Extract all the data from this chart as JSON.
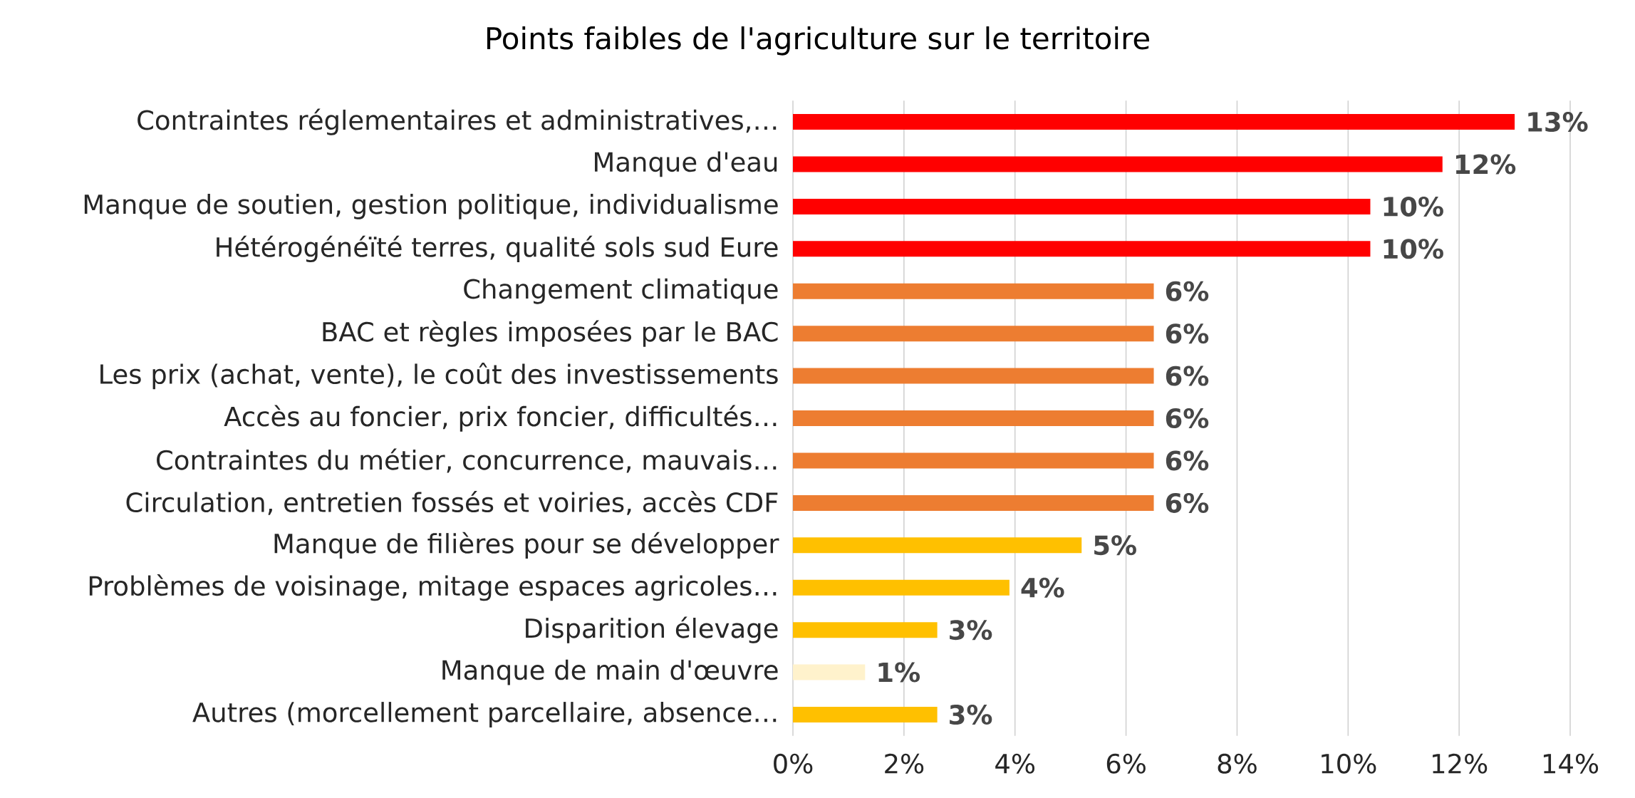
{
  "chart_data": {
    "type": "bar",
    "orientation": "horizontal",
    "title": "Points faibles de l'agriculture sur le territoire",
    "categories": [
      "Contraintes réglementaires et administratives,…",
      "Manque d'eau",
      "Manque de soutien, gestion politique, individualisme",
      "Hétérogénéïté terres, qualité sols sud Eure",
      "Changement climatique",
      "BAC et règles imposées par le BAC",
      "Les prix (achat, vente), le coût des investissements",
      "Accès au foncier, prix foncier, difficultés…",
      "Contraintes du métier, concurrence, mauvais…",
      "Circulation, entretien fossés et voiries, accès CDF",
      "Manque de filières pour se développer",
      "Problèmes de voisinage, mitage espaces agricoles…",
      "Disparition élevage",
      "Manque de main d'œuvre",
      "Autres (morcellement parcellaire, absence…"
    ],
    "values": [
      13.0,
      11.7,
      10.4,
      10.4,
      6.5,
      6.5,
      6.5,
      6.5,
      6.5,
      6.5,
      5.2,
      3.9,
      2.6,
      1.3,
      2.6
    ],
    "value_labels": [
      "13%",
      "12%",
      "10%",
      "10%",
      "6%",
      "6%",
      "6%",
      "6%",
      "6%",
      "6%",
      "5%",
      "4%",
      "3%",
      "1%",
      "3%"
    ],
    "colors": [
      "#ff0000",
      "#ff0000",
      "#ff0000",
      "#ff0000",
      "#ed7d31",
      "#ed7d31",
      "#ed7d31",
      "#ed7d31",
      "#ed7d31",
      "#ed7d31",
      "#ffc000",
      "#ffc000",
      "#ffc000",
      "#fff2cc",
      "#ffc000"
    ],
    "xlim": [
      0,
      14
    ],
    "xticks": [
      {
        "value": 0,
        "label": "0%"
      },
      {
        "value": 2,
        "label": "2%"
      },
      {
        "value": 4,
        "label": "4%"
      },
      {
        "value": 6,
        "label": "6%"
      },
      {
        "value": 8,
        "label": "8%"
      },
      {
        "value": 10,
        "label": "10%"
      },
      {
        "value": 12,
        "label": "12%"
      },
      {
        "value": 14,
        "label": "14%"
      }
    ],
    "grid": "x"
  }
}
